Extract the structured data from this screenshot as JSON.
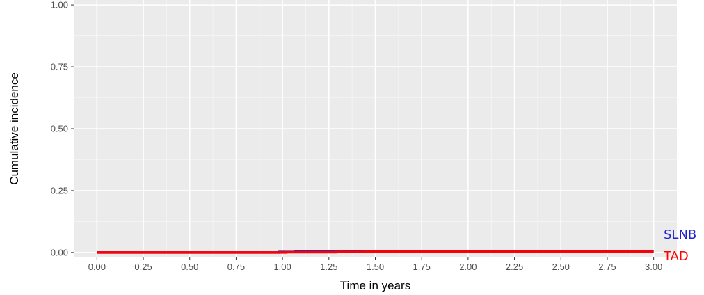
{
  "chart_data": {
    "type": "line",
    "title": "",
    "xlabel": "Time in years",
    "ylabel": "Cumulative incidence",
    "xlim": [
      -0.125,
      3.125
    ],
    "ylim": [
      -0.02,
      1.02
    ],
    "x_ticks": [
      "0.00",
      "0.25",
      "0.50",
      "0.75",
      "1.00",
      "1.25",
      "1.50",
      "1.75",
      "2.00",
      "2.25",
      "2.50",
      "2.75",
      "3.00"
    ],
    "y_ticks": [
      "0.00",
      "0.25",
      "0.50",
      "0.75",
      "1.00"
    ],
    "grid": true,
    "legend": "direct labels at right end of lines",
    "series": [
      {
        "name": "SLNB",
        "color": "#2020d0",
        "step": true,
        "x": [
          0.0,
          0.98,
          1.07,
          1.43,
          3.0
        ],
        "y": [
          0.0,
          0.002,
          0.004,
          0.006,
          0.006
        ]
      },
      {
        "name": "TAD",
        "color": "#ff0000",
        "step": true,
        "x": [
          0.0,
          1.02,
          1.29,
          1.44,
          3.0
        ],
        "y": [
          0.0,
          0.001,
          0.002,
          0.003,
          0.003
        ]
      }
    ]
  }
}
